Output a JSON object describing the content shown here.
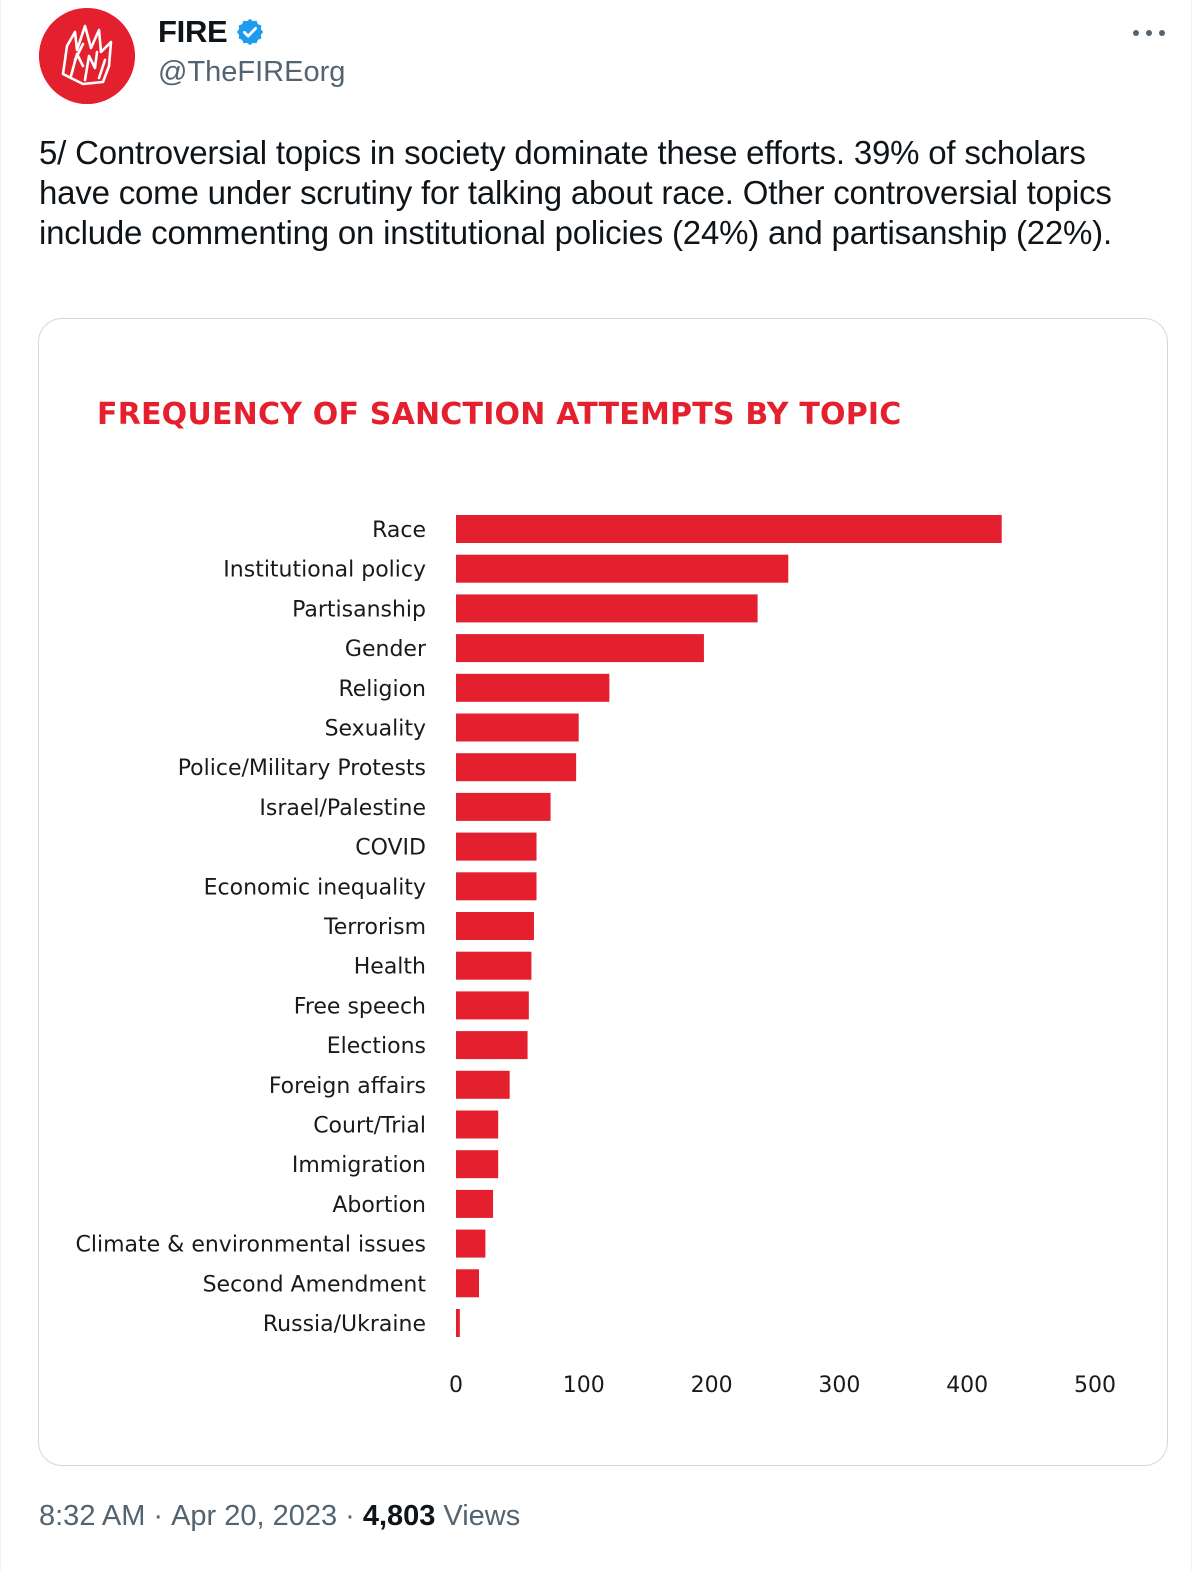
{
  "tweet": {
    "display_name": "FIRE",
    "handle": "@TheFIREorg",
    "text": "5/ Controversial topics in society dominate these efforts. 39% of scholars have come under scrutiny for talking about race. Other controversial topics include commenting on institutional policies (24%) and partisanship (22%).",
    "time": "8:32 AM",
    "date": "Apr 20, 2023",
    "views_count": "4,803",
    "views_label": "Views",
    "separator": "·"
  },
  "icons": {
    "avatar": "fire-logo-icon",
    "verified": "verified-badge-icon",
    "more": "more-options-icon"
  },
  "colors": {
    "brand_red": "#e4202e",
    "verified_blue": "#1d9bf0",
    "muted_text": "#536471"
  },
  "chart_data": {
    "type": "bar",
    "orientation": "horizontal",
    "title": "FREQUENCY OF SANCTION ATTEMPTS BY TOPIC",
    "categories": [
      "Race",
      "Institutional policy",
      "Partisanship",
      "Gender",
      "Religion",
      "Sexuality",
      "Police/Military Protests",
      "Israel/Palestine",
      "COVID",
      "Economic inequality",
      "Terrorism",
      "Health",
      "Free speech",
      "Elections",
      "Foreign affairs",
      "Court/Trial",
      "Immigration",
      "Abortion",
      "Climate & environmental issues",
      "Second Amendment",
      "Russia/Ukraine"
    ],
    "values": [
      427,
      260,
      236,
      194,
      120,
      96,
      94,
      74,
      63,
      63,
      61,
      59,
      57,
      56,
      42,
      33,
      33,
      29,
      23,
      18,
      3
    ],
    "xlim": [
      0,
      500
    ],
    "xticks": [
      0,
      100,
      200,
      300,
      400,
      500
    ],
    "xlabel": "",
    "ylabel": "",
    "bar_color": "#e4202e",
    "grid": false,
    "legend": "none"
  }
}
